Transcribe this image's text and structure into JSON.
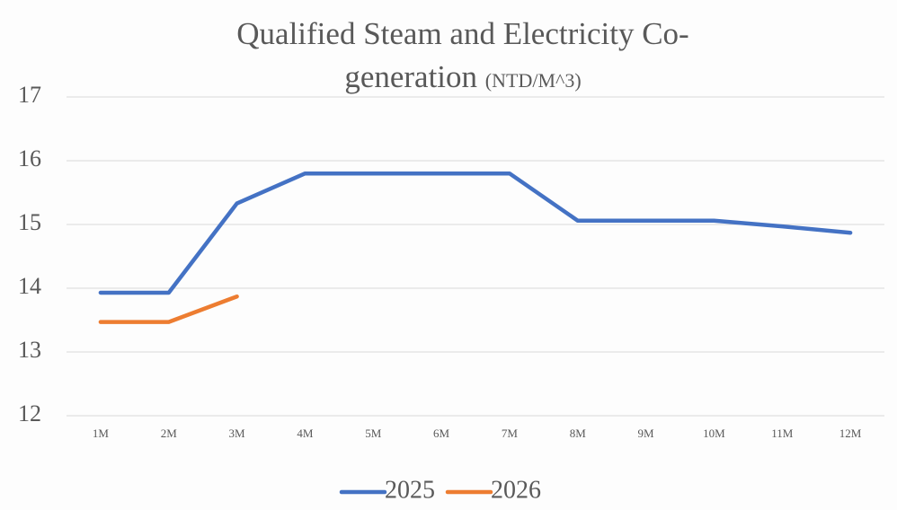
{
  "chart_data": {
    "type": "line",
    "title": "Qualified Steam and Electricity Co-generation",
    "unit": "(NTD/M^3)",
    "categories": [
      "1M",
      "2M",
      "3M",
      "4M",
      "5M",
      "6M",
      "7M",
      "8M",
      "9M",
      "10M",
      "11M",
      "12M"
    ],
    "series": [
      {
        "name": "2025",
        "color": "#4472c4",
        "values": [
          13.93,
          13.93,
          15.33,
          15.8,
          15.8,
          15.8,
          15.8,
          15.06,
          15.06,
          15.06,
          14.97,
          14.87
        ]
      },
      {
        "name": "2026",
        "color": "#ed7d31",
        "values": [
          13.47,
          13.47,
          13.87,
          null,
          null,
          null,
          null,
          null,
          null,
          null,
          null,
          null
        ]
      }
    ],
    "ylim": [
      12,
      17
    ],
    "yticks": [
      12,
      13,
      14,
      15,
      16,
      17
    ],
    "grid": true,
    "legend": "bottom"
  }
}
